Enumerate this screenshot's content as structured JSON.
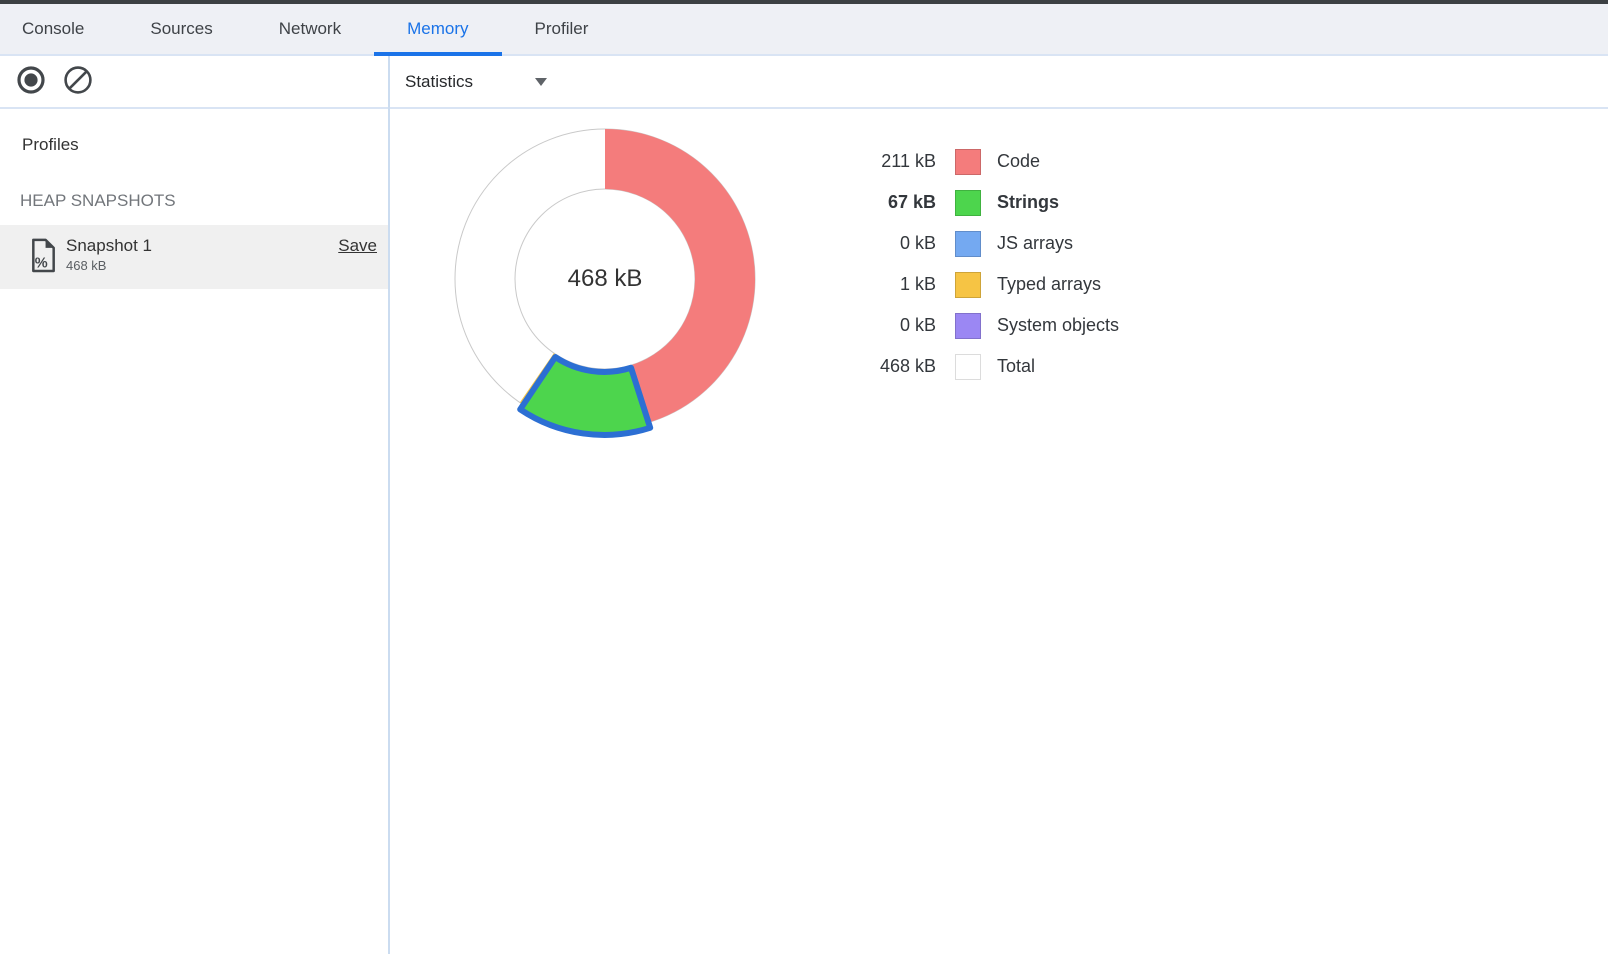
{
  "tabbar": {
    "tabs": [
      {
        "label": "Console",
        "active": false
      },
      {
        "label": "Sources",
        "active": false
      },
      {
        "label": "Network",
        "active": false
      },
      {
        "label": "Memory",
        "active": true
      },
      {
        "label": "Profiler",
        "active": false
      }
    ]
  },
  "toolbar": {
    "record_icon": "record-toggle",
    "clear_icon": "clear-all-profiles",
    "view_selector": {
      "label": "Statistics",
      "chevron_icon": "triangle-down"
    }
  },
  "sidebar": {
    "heading": "Profiles",
    "section_heading": "HEAP SNAPSHOTS",
    "snapshot": {
      "icon": "heap-snapshot-document",
      "name": "Snapshot 1",
      "size": "468 kB",
      "save_label": "Save",
      "selected": true
    }
  },
  "chart_data": {
    "type": "pie",
    "style": "donut",
    "center_label": "468 kB",
    "total_kb": 468,
    "unit": "kB",
    "direction": "clockwise",
    "start_angle_deg": 0,
    "selected_category": "Strings",
    "categories": [
      "Code",
      "Strings",
      "JS arrays",
      "Typed arrays",
      "System objects"
    ],
    "values_kb": [
      211,
      67,
      0,
      1,
      0
    ],
    "value_labels": [
      "211 kB",
      "67 kB",
      "0 kB",
      "1 kB",
      "0 kB"
    ],
    "colors": [
      "#f47c7c",
      "#4dd54d",
      "#74a9f1",
      "#f6c444",
      "#9b87f3"
    ],
    "total_row": {
      "label": "Total",
      "value_label": "468 kB",
      "color": "#ffffff"
    },
    "legend_position": "right",
    "selection_outline_color": "#2c6fd3",
    "ring_outline_color": "#c9c9c9"
  },
  "colors": {
    "accent_blue": "#1a73e8"
  }
}
